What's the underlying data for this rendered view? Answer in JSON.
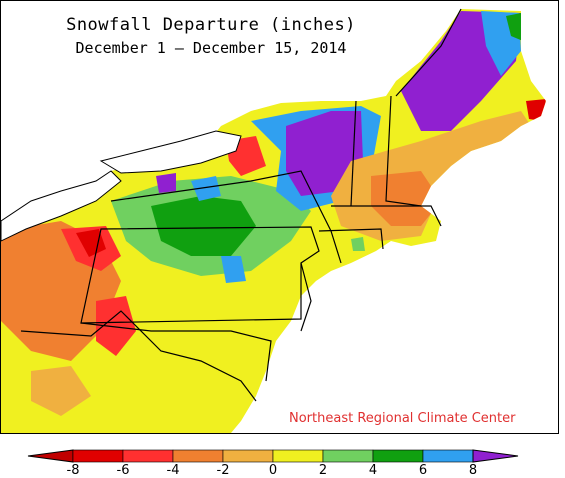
{
  "map": {
    "title": "Snowfall Departure (inches)",
    "subtitle": "December 1 — December 15, 2014",
    "credit": "Northeast Regional Climate Center"
  },
  "legend": {
    "ticks": [
      "-8",
      "-6",
      "-4",
      "-2",
      "0",
      "2",
      "4",
      "6",
      "8"
    ],
    "colors": [
      "#e00000",
      "#ff3030",
      "#f08030",
      "#f0b040",
      "#f0f020",
      "#70d060",
      "#10a010",
      "#30a0f0",
      "#9020d0"
    ],
    "low_color": "#c00000",
    "high_color": "#9020d0"
  },
  "colors": {
    "water": "#ffffff",
    "outside": "#ffffff",
    "boundary": "#000000",
    "county": "#8a8a8a"
  }
}
